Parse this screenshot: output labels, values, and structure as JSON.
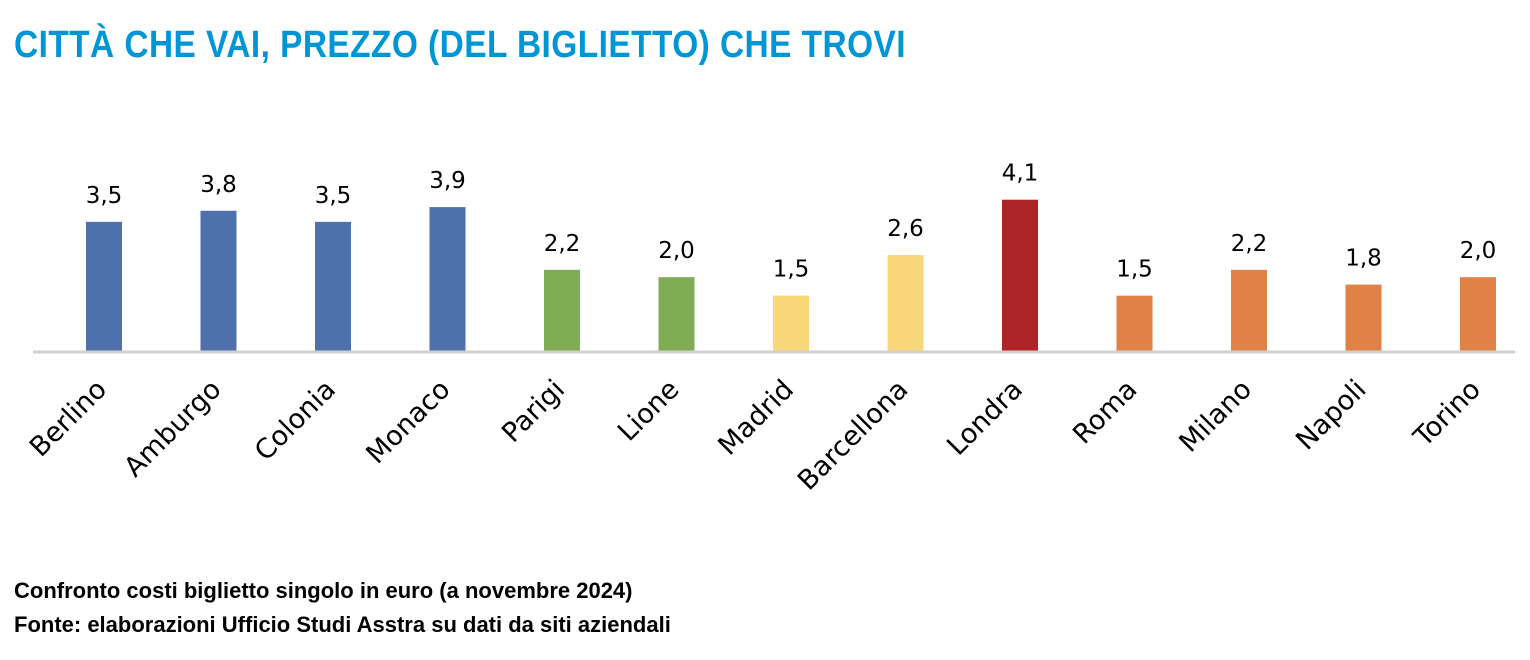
{
  "title": "CITTÀ CHE VAI, PREZZO (DEL BIGLIETTO) CHE TROVI",
  "footer": {
    "line1": "Confronto costi biglietto singolo in euro (a novembre 2024)",
    "line2": "Fonte: elaborazioni Ufficio Studi Asstra su dati da siti aziendali"
  },
  "chart_data": {
    "type": "bar",
    "title": "CITTÀ CHE VAI, PREZZO (DEL BIGLIETTO) CHE TROVI",
    "xlabel": "",
    "ylabel": "",
    "ylim": [
      0,
      4.5
    ],
    "grid": false,
    "categories": [
      "Berlino",
      "Amburgo",
      "Colonia",
      "Monaco",
      "Parigi",
      "Lione",
      "Madrid",
      "Barcellona",
      "Londra",
      "Roma",
      "Milano",
      "Napoli",
      "Torino"
    ],
    "values": [
      3.5,
      3.8,
      3.5,
      3.9,
      2.2,
      2.0,
      1.5,
      2.6,
      4.1,
      1.5,
      2.2,
      1.8,
      2.0
    ],
    "labels": [
      "3,5",
      "3,8",
      "3,5",
      "3,9",
      "2,2",
      "2,0",
      "1,5",
      "2,6",
      "4,1",
      "1,5",
      "2,2",
      "1,8",
      "2,0"
    ],
    "colors": [
      "#4e71ab",
      "#4e71ab",
      "#4e71ab",
      "#4e71ab",
      "#7fac55",
      "#7fac55",
      "#f8d77a",
      "#f8d77a",
      "#ae2529",
      "#e08145",
      "#e08145",
      "#e08145",
      "#e08145"
    ],
    "axis_color": "#d0d0d0"
  }
}
